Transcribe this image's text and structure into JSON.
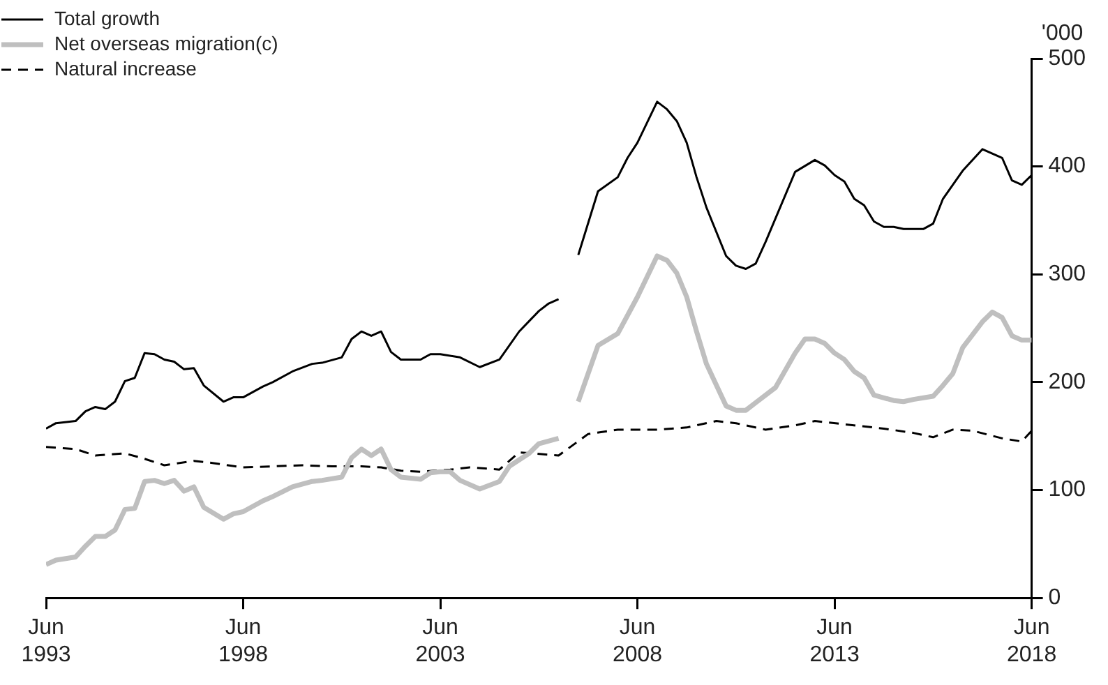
{
  "chart_data": {
    "type": "line",
    "ylabel": "'000",
    "legend": "top left",
    "grid": false,
    "marker": "none",
    "xlim": [
      "1993-06",
      "2018-06"
    ],
    "xticks": [
      {
        "value": "1993-06",
        "label": "Jun\n1993"
      },
      {
        "value": "1998-06",
        "label": "Jun\n1998"
      },
      {
        "value": "2003-06",
        "label": "Jun\n2003"
      },
      {
        "value": "2008-06",
        "label": "Jun\n2008"
      },
      {
        "value": "2013-06",
        "label": "Jun\n2013"
      },
      {
        "value": "2018-06",
        "label": "Jun\n2018"
      }
    ],
    "ylim": [
      0,
      500
    ],
    "yticks": [
      0,
      100,
      200,
      300,
      400,
      500
    ],
    "series": [
      {
        "name": "Total growth",
        "color": "#000000",
        "line_style": "solid",
        "x": [
          "1993-06",
          "1993-09",
          "1994-03",
          "1994-06",
          "1994-09",
          "1994-12",
          "1995-03",
          "1995-06",
          "1995-09",
          "1995-12",
          "1996-03",
          "1996-06",
          "1996-09",
          "1996-12",
          "1997-03",
          "1997-06",
          "1997-12",
          "1998-03",
          "1998-06",
          "1998-12",
          "1999-03",
          "1999-09",
          "2000-03",
          "2000-06",
          "2000-12",
          "2001-03",
          "2001-06",
          "2001-09",
          "2001-12",
          "2002-03",
          "2002-06",
          "2002-12",
          "2003-03",
          "2003-06",
          "2003-12",
          "2004-06",
          "2004-12",
          "2005-06",
          "2005-12",
          "2006-03",
          "2006-06",
          "2006-09",
          "2006-12",
          "2007-06",
          "2007-12",
          "2008-03",
          "2008-06",
          "2008-12",
          "2009-03",
          "2009-06",
          "2009-09",
          "2009-12",
          "2010-03",
          "2010-09",
          "2010-12",
          "2011-03",
          "2011-06",
          "2011-09",
          "2012-06",
          "2012-12",
          "2013-03",
          "2013-06",
          "2013-09",
          "2013-12",
          "2014-03",
          "2014-06",
          "2014-09",
          "2014-12",
          "2015-03",
          "2015-09",
          "2015-12",
          "2016-03",
          "2016-09",
          "2017-03",
          "2017-09",
          "2017-12",
          "2018-03",
          "2018-06"
        ],
        "values": [
          157,
          162,
          164,
          173,
          177,
          175,
          182,
          201,
          204,
          227,
          226,
          221,
          219,
          212,
          213,
          197,
          182,
          186,
          186,
          196,
          200,
          210,
          217,
          218,
          223,
          240,
          247,
          243,
          247,
          228,
          221,
          221,
          226,
          226,
          223,
          214,
          221,
          247,
          266,
          273,
          277,
          null,
          318,
          377,
          390,
          408,
          422,
          460,
          453,
          442,
          422,
          390,
          362,
          317,
          308,
          305,
          310,
          330,
          395,
          406,
          401,
          392,
          386,
          370,
          364,
          349,
          344,
          344,
          342,
          342,
          347,
          370,
          396,
          416,
          408,
          387,
          383,
          392
        ]
      },
      {
        "name": "Net overseas migration(c)",
        "color": "#bfbfbf",
        "line_style": "solid",
        "x": [
          "1993-06",
          "1993-09",
          "1994-03",
          "1994-06",
          "1994-09",
          "1994-12",
          "1995-03",
          "1995-06",
          "1995-09",
          "1995-12",
          "1996-03",
          "1996-06",
          "1996-09",
          "1996-12",
          "1997-03",
          "1997-06",
          "1997-12",
          "1998-03",
          "1998-06",
          "1998-12",
          "1999-03",
          "1999-09",
          "2000-03",
          "2000-06",
          "2000-12",
          "2001-03",
          "2001-06",
          "2001-09",
          "2001-12",
          "2002-03",
          "2002-06",
          "2002-12",
          "2003-03",
          "2003-06",
          "2003-09",
          "2003-12",
          "2004-06",
          "2004-12",
          "2005-03",
          "2005-09",
          "2005-12",
          "2006-06",
          "2006-09",
          "2006-12",
          "2007-06",
          "2007-12",
          "2008-06",
          "2008-12",
          "2009-03",
          "2009-06",
          "2009-09",
          "2009-12",
          "2010-03",
          "2010-09",
          "2010-12",
          "2011-03",
          "2011-06",
          "2011-12",
          "2012-06",
          "2012-09",
          "2012-12",
          "2013-03",
          "2013-06",
          "2013-09",
          "2013-12",
          "2014-03",
          "2014-06",
          "2014-12",
          "2015-03",
          "2015-06",
          "2015-12",
          "2016-03",
          "2016-06",
          "2016-09",
          "2017-03",
          "2017-06",
          "2017-09",
          "2017-12",
          "2018-03",
          "2018-06"
        ],
        "values": [
          31,
          35,
          38,
          48,
          57,
          57,
          63,
          82,
          83,
          108,
          109,
          106,
          109,
          99,
          103,
          84,
          73,
          78,
          80,
          90,
          94,
          103,
          108,
          109,
          112,
          130,
          138,
          132,
          138,
          119,
          112,
          110,
          116,
          117,
          117,
          109,
          101,
          108,
          122,
          134,
          143,
          148,
          null,
          182,
          234,
          245,
          279,
          317,
          313,
          301,
          279,
          247,
          217,
          178,
          174,
          174,
          181,
          195,
          227,
          240,
          240,
          236,
          227,
          221,
          210,
          204,
          188,
          183,
          182,
          184,
          187,
          197,
          208,
          232,
          256,
          265,
          260,
          243,
          239,
          239
        ]
      },
      {
        "name": "Natural increase",
        "color": "#000000",
        "line_style": "dashed",
        "x": [
          "1993-06",
          "1994-03",
          "1994-09",
          "1995-06",
          "1995-12",
          "1996-06",
          "1997-03",
          "1997-09",
          "1998-06",
          "1999-03",
          "1999-12",
          "2000-09",
          "2001-06",
          "2001-12",
          "2002-06",
          "2002-12",
          "2003-09",
          "2004-03",
          "2004-12",
          "2005-06",
          "2006-06",
          "2007-03",
          "2007-12",
          "2008-12",
          "2009-09",
          "2010-06",
          "2010-12",
          "2011-09",
          "2012-06",
          "2012-12",
          "2013-09",
          "2014-09",
          "2015-06",
          "2015-12",
          "2016-06",
          "2016-12",
          "2017-09",
          "2018-03",
          "2018-06"
        ],
        "values": [
          140,
          138,
          132,
          134,
          129,
          123,
          127,
          125,
          121,
          122,
          123,
          122,
          122,
          121,
          118,
          117,
          119,
          121,
          119,
          135,
          132,
          152,
          156,
          156,
          158,
          164,
          162,
          156,
          160,
          164,
          161,
          157,
          153,
          149,
          156,
          155,
          148,
          145,
          155
        ]
      }
    ]
  }
}
